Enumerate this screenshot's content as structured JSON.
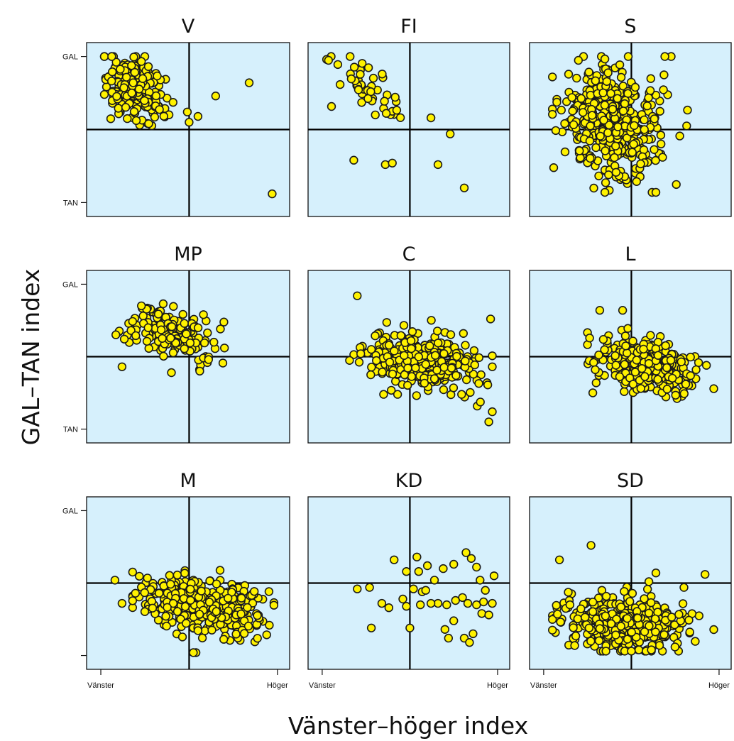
{
  "figure": {
    "ylabel": "GAL–TAN index",
    "xlabel": "Vänster–höger index"
  },
  "colors": {
    "panel_background": "#d6f0fc",
    "point_fill": "#fff200",
    "point_stroke": "#1a1a1a",
    "reference_line": "#000000"
  },
  "chart_data": [
    {
      "type": "scatter",
      "title": "V",
      "xlim": [
        0,
        1
      ],
      "ylim": [
        0,
        1
      ],
      "x_ticks": [],
      "y_ticks": [
        "GAL",
        "TAN"
      ],
      "reference": {
        "x": 0.5,
        "y": 0.5
      },
      "points": []
    },
    {
      "type": "scatter",
      "title": "FI",
      "xlim": [
        0,
        1
      ],
      "ylim": [
        0,
        1
      ],
      "x_ticks": [],
      "y_ticks": [],
      "reference": {
        "x": 0.5,
        "y": 0.5
      },
      "points": []
    },
    {
      "type": "scatter",
      "title": "S",
      "xlim": [
        0,
        1
      ],
      "ylim": [
        0,
        1
      ],
      "x_ticks": [],
      "y_ticks": [],
      "reference": {
        "x": 0.5,
        "y": 0.5
      },
      "points": []
    },
    {
      "type": "scatter",
      "title": "MP",
      "xlim": [
        0,
        1
      ],
      "ylim": [
        0,
        1
      ],
      "x_ticks": [],
      "y_ticks": [
        "GAL",
        "TAN"
      ],
      "reference": {
        "x": 0.5,
        "y": 0.5
      },
      "points": []
    },
    {
      "type": "scatter",
      "title": "C",
      "xlim": [
        0,
        1
      ],
      "ylim": [
        0,
        1
      ],
      "x_ticks": [],
      "y_ticks": [],
      "reference": {
        "x": 0.5,
        "y": 0.5
      },
      "points": []
    },
    {
      "type": "scatter",
      "title": "L",
      "xlim": [
        0,
        1
      ],
      "ylim": [
        0,
        1
      ],
      "x_ticks": [],
      "y_ticks": [],
      "reference": {
        "x": 0.5,
        "y": 0.5
      },
      "points": []
    },
    {
      "type": "scatter",
      "title": "M",
      "xlim": [
        0,
        1
      ],
      "ylim": [
        0,
        1
      ],
      "x_ticks": [
        "Vänster",
        "Höger"
      ],
      "y_ticks": [
        "GAL",
        ""
      ],
      "reference": {
        "x": 0.5,
        "y": 0.5
      },
      "points": []
    },
    {
      "type": "scatter",
      "title": "KD",
      "xlim": [
        0,
        1
      ],
      "ylim": [
        0,
        1
      ],
      "x_ticks": [
        "Vänster",
        "Höger"
      ],
      "y_ticks": [],
      "reference": {
        "x": 0.5,
        "y": 0.5
      },
      "points": []
    },
    {
      "type": "scatter",
      "title": "SD",
      "xlim": [
        0,
        1
      ],
      "ylim": [
        0,
        1
      ],
      "x_ticks": [
        "Vänster",
        "Höger"
      ],
      "y_ticks": [],
      "reference": {
        "x": 0.5,
        "y": 0.5
      },
      "points": []
    }
  ]
}
